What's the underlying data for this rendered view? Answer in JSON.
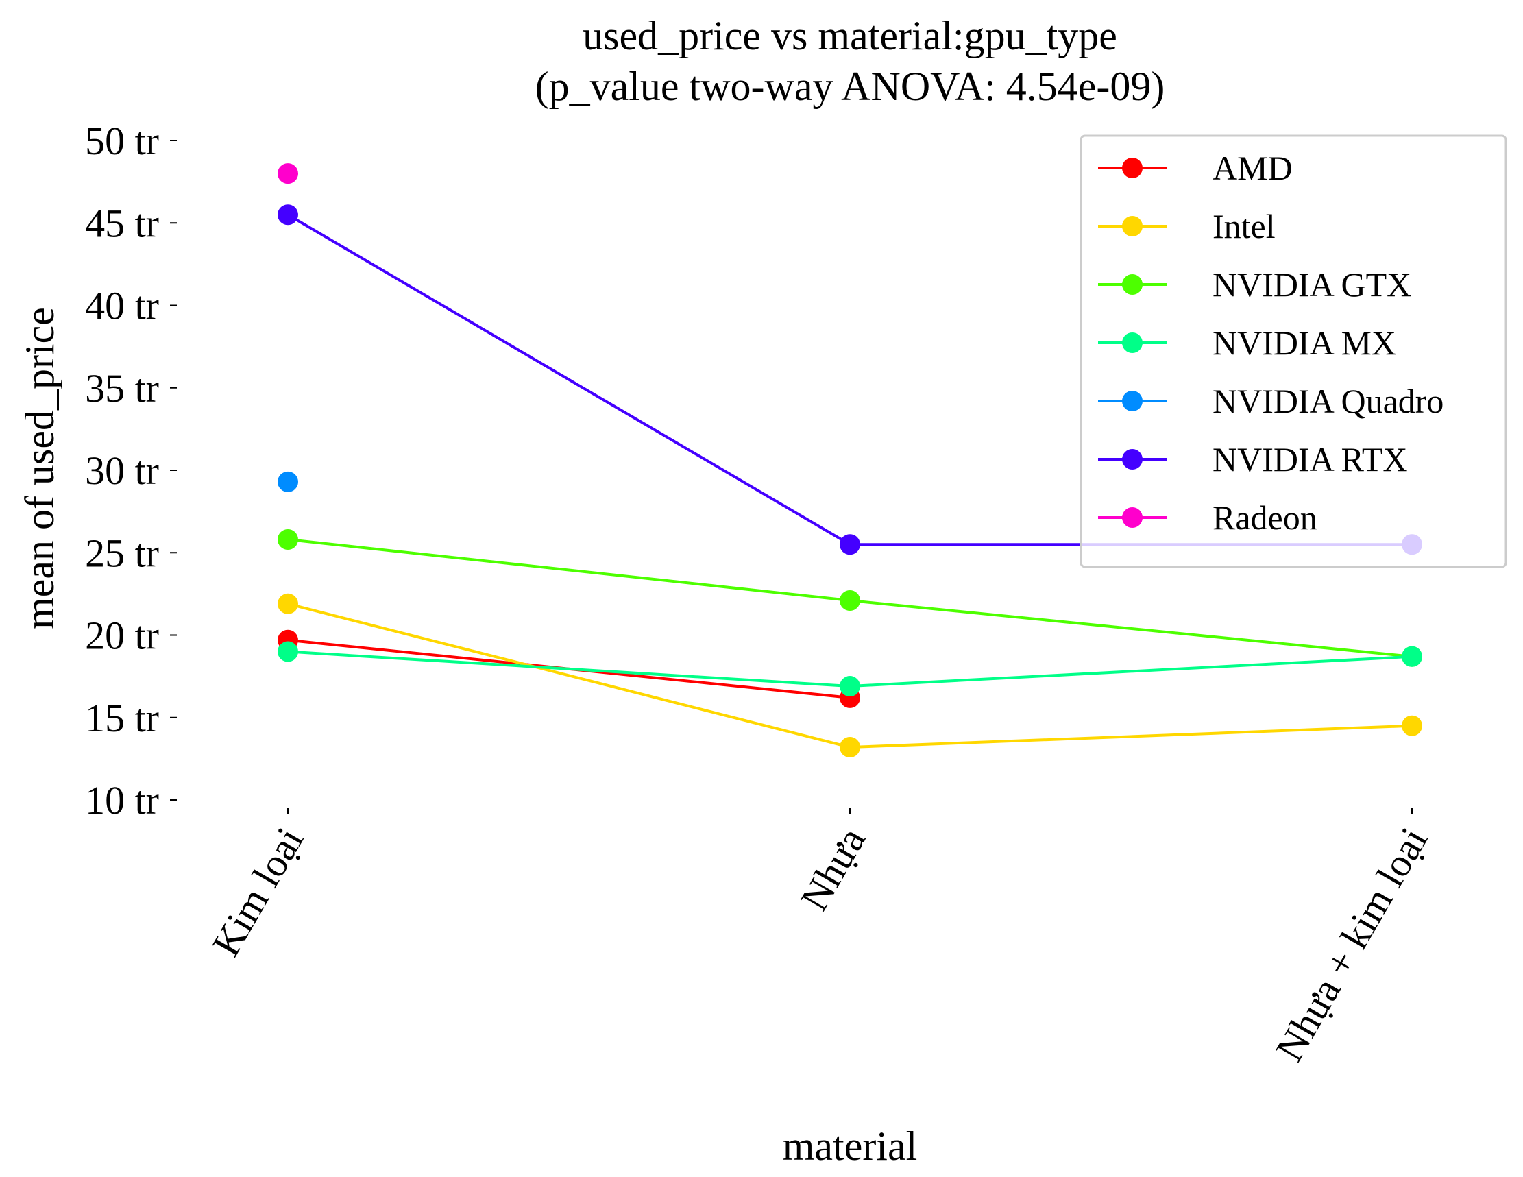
{
  "chart_data": {
    "type": "line",
    "title": "used_price vs material:gpu_type",
    "subtitle": "(p_value two-way ANOVA: 4.54e-09)",
    "xlabel": "material",
    "ylabel": "mean of used_price",
    "categories": [
      "Kim loại",
      "Nhựa",
      "Nhựa + kim loại"
    ],
    "yticks": [
      10,
      15,
      20,
      25,
      30,
      35,
      40,
      45,
      50
    ],
    "ytick_labels": [
      "10 tr",
      "15 tr",
      "20 tr",
      "25 tr",
      "30 tr",
      "35 tr",
      "40 tr",
      "45 tr",
      "50 tr"
    ],
    "ylim": [
      10,
      50
    ],
    "grid": false,
    "legend_position": "top-right",
    "series": [
      {
        "name": "AMD",
        "color": "#ff0000",
        "values": [
          19.7,
          16.2,
          null
        ]
      },
      {
        "name": "Intel",
        "color": "#ffd700",
        "values": [
          21.9,
          13.2,
          14.5
        ]
      },
      {
        "name": "NVIDIA GTX",
        "color": "#4dff00",
        "values": [
          25.8,
          22.1,
          18.7
        ]
      },
      {
        "name": "NVIDIA MX",
        "color": "#00ff88",
        "values": [
          19.0,
          16.9,
          18.7
        ]
      },
      {
        "name": "NVIDIA Quadro",
        "color": "#008cff",
        "values": [
          29.3,
          null,
          null
        ]
      },
      {
        "name": "NVIDIA RTX",
        "color": "#4400ff",
        "values": [
          45.5,
          25.5,
          25.5
        ]
      },
      {
        "name": "Radeon",
        "color": "#ff00cc",
        "values": [
          48.0,
          null,
          null
        ]
      }
    ]
  }
}
